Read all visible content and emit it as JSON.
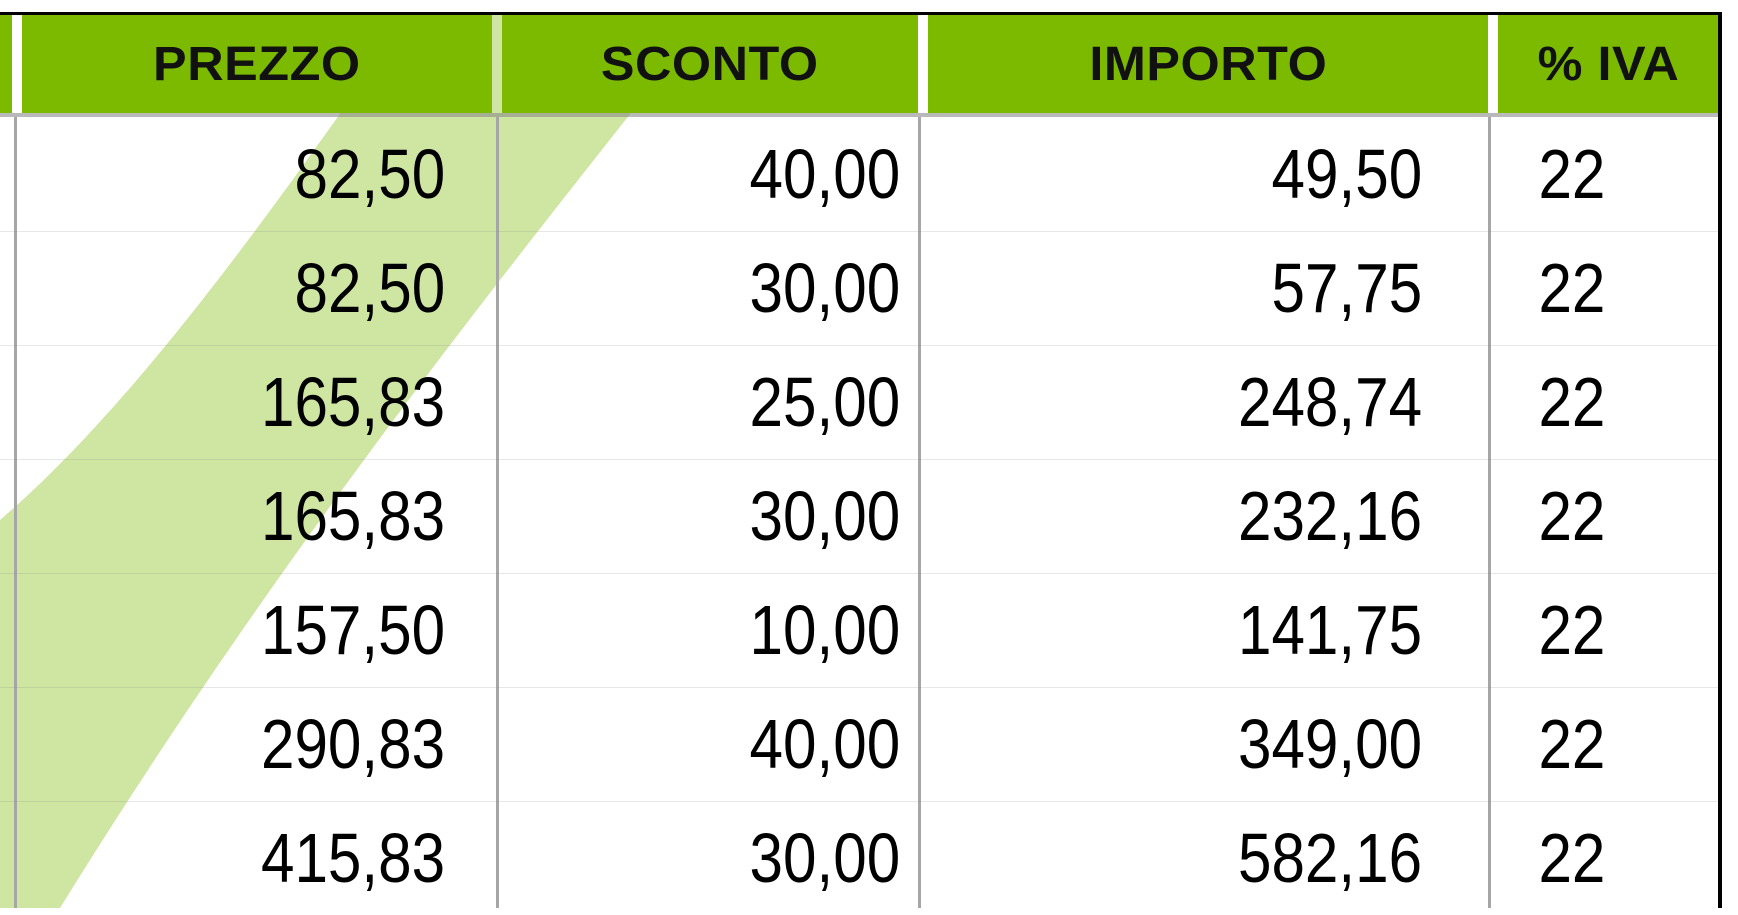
{
  "table": {
    "columns": [
      "PREZZO",
      "SCONTO",
      "IMPORTO",
      "% IVA"
    ],
    "rows": [
      [
        "82,50",
        "40,00",
        "49,50",
        "22"
      ],
      [
        "82,50",
        "30,00",
        "57,75",
        "22"
      ],
      [
        "165,83",
        "25,00",
        "248,74",
        "22"
      ],
      [
        "165,83",
        "30,00",
        "232,16",
        "22"
      ],
      [
        "157,50",
        "10,00",
        "141,75",
        "22"
      ],
      [
        "290,83",
        "40,00",
        "349,00",
        "22"
      ],
      [
        "415,83",
        "30,00",
        "582,16",
        "22"
      ]
    ]
  },
  "colors": {
    "header_background": "#7cba00",
    "watermark": "#cfe6a3"
  }
}
